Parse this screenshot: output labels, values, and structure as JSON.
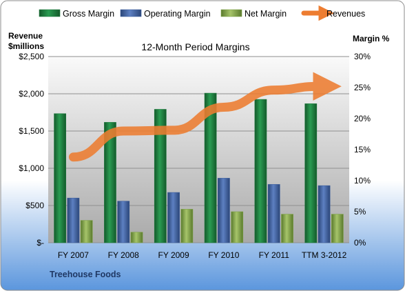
{
  "chart_data": {
    "type": "bar",
    "title": "12-Month Period Margins",
    "company": "Treehouse Foods",
    "left_axis": {
      "label_line1": "Revenue",
      "label_line2": "$millions",
      "min": 0,
      "max": 2500,
      "ticks": [
        0,
        500,
        1000,
        1500,
        2000,
        2500
      ],
      "tick_labels": [
        "$-",
        "$500",
        "$1,000",
        "$1,500",
        "$2,000",
        "$2,500"
      ]
    },
    "right_axis": {
      "label": "Margin %",
      "min": 0,
      "max": 30,
      "ticks": [
        0,
        5,
        10,
        15,
        20,
        25,
        30
      ],
      "tick_labels": [
        "0%",
        "5%",
        "10%",
        "15%",
        "20%",
        "25%",
        "30%"
      ]
    },
    "categories": [
      "FY 2007",
      "FY 2008",
      "FY 2009",
      "FY 2010",
      "FY 2011",
      "TTM 3-2012"
    ],
    "series": [
      {
        "name": "Gross Margin",
        "type": "bar",
        "axis": "right",
        "color": "#1e7a3e",
        "values": [
          20.8,
          19.4,
          21.5,
          24.1,
          23.1,
          22.4
        ]
      },
      {
        "name": "Operating Margin",
        "type": "bar",
        "axis": "right",
        "color": "#3d5f9e",
        "values": [
          7.2,
          6.7,
          8.1,
          10.4,
          9.4,
          9.2
        ]
      },
      {
        "name": "Net Margin",
        "type": "bar",
        "axis": "right",
        "color": "#7ea346",
        "values": [
          3.6,
          1.7,
          5.4,
          5.0,
          4.6,
          4.6
        ]
      },
      {
        "name": "Revenues",
        "type": "line",
        "axis": "left",
        "color": "#ed7d31",
        "values": [
          1150,
          1500,
          1510,
          1820,
          2050,
          2100
        ]
      }
    ],
    "grid": true,
    "legend_position": "top"
  }
}
